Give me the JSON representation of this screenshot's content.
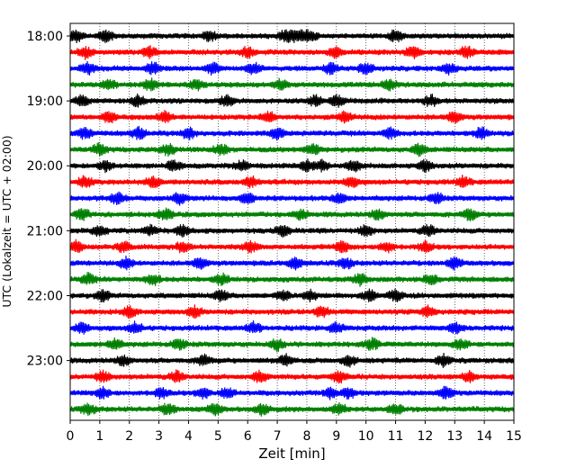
{
  "chart_data": {
    "type": "line",
    "title": "",
    "xlabel": "Zeit  [min]",
    "ylabel": "UTC (Lokalzeit = UTC + 02:00)",
    "xlim": [
      0,
      15
    ],
    "xticks": [
      0,
      1,
      2,
      3,
      4,
      5,
      6,
      7,
      8,
      9,
      10,
      11,
      12,
      13,
      14,
      15
    ],
    "grid": "vertical dotted",
    "row_interval_minutes": 15,
    "y_tick_labels": [
      "18:00",
      "19:00",
      "20:00",
      "21:00",
      "22:00",
      "23:00"
    ],
    "color_cycle": [
      "#000000",
      "#ff0000",
      "#0000ff",
      "#008000"
    ],
    "rows": [
      {
        "start": "18:00",
        "color": "black",
        "events_min": [
          0.2,
          1.2,
          4.7,
          7.3,
          7.7,
          8.1,
          11.0
        ]
      },
      {
        "start": "18:15",
        "color": "red",
        "events_min": [
          0.5,
          2.7,
          6.0,
          9.0,
          11.6,
          13.4
        ]
      },
      {
        "start": "18:30",
        "color": "blue",
        "events_min": [
          0.6,
          2.8,
          4.8,
          6.2,
          8.8,
          10.0,
          12.8
        ]
      },
      {
        "start": "18:45",
        "color": "green",
        "events_min": [
          1.3,
          2.7,
          4.3,
          7.1,
          10.8
        ]
      },
      {
        "start": "19:00",
        "color": "black",
        "events_min": [
          0.4,
          2.3,
          5.3,
          8.3,
          9.0,
          12.2
        ]
      },
      {
        "start": "19:15",
        "color": "red",
        "events_min": [
          1.3,
          3.2,
          6.7,
          9.3,
          13.0
        ]
      },
      {
        "start": "19:30",
        "color": "blue",
        "events_min": [
          0.5,
          2.3,
          4.0,
          7.0,
          10.8,
          13.9
        ]
      },
      {
        "start": "19:45",
        "color": "green",
        "events_min": [
          1.0,
          3.3,
          5.1,
          8.2,
          11.8
        ]
      },
      {
        "start": "20:00",
        "color": "black",
        "events_min": [
          1.2,
          3.5,
          5.8,
          8.0,
          8.5,
          9.6,
          12.0
        ]
      },
      {
        "start": "20:15",
        "color": "red",
        "events_min": [
          0.5,
          2.8,
          6.1,
          9.5,
          13.3
        ]
      },
      {
        "start": "20:30",
        "color": "blue",
        "events_min": [
          1.6,
          3.7,
          6.0,
          9.1,
          12.4
        ]
      },
      {
        "start": "20:45",
        "color": "green",
        "events_min": [
          0.4,
          3.2,
          7.8,
          10.4,
          13.5
        ]
      },
      {
        "start": "21:00",
        "color": "black",
        "events_min": [
          1.0,
          2.7,
          3.8,
          7.2,
          10.0,
          12.1
        ]
      },
      {
        "start": "21:15",
        "color": "red",
        "events_min": [
          0.2,
          1.8,
          3.8,
          6.1,
          9.2,
          10.7,
          12.0
        ]
      },
      {
        "start": "21:30",
        "color": "blue",
        "events_min": [
          1.9,
          4.4,
          7.6,
          9.3,
          13.0
        ]
      },
      {
        "start": "21:45",
        "color": "green",
        "events_min": [
          0.6,
          2.8,
          5.1,
          9.8,
          12.2
        ]
      },
      {
        "start": "22:00",
        "color": "black",
        "events_min": [
          1.1,
          5.1,
          7.2,
          8.1,
          10.1,
          11.0
        ]
      },
      {
        "start": "22:15",
        "color": "red",
        "events_min": [
          2.0,
          4.2,
          8.5,
          12.1
        ]
      },
      {
        "start": "22:30",
        "color": "blue",
        "events_min": [
          0.4,
          2.2,
          6.2,
          9.0,
          13.0
        ]
      },
      {
        "start": "22:45",
        "color": "green",
        "events_min": [
          1.5,
          3.7,
          7.0,
          10.2,
          13.2
        ]
      },
      {
        "start": "23:00",
        "color": "black",
        "events_min": [
          1.8,
          4.5,
          7.3,
          9.4,
          12.6
        ]
      },
      {
        "start": "23:15",
        "color": "red",
        "events_min": [
          1.1,
          3.6,
          6.4,
          9.1,
          13.5
        ]
      },
      {
        "start": "23:30",
        "color": "blue",
        "events_min": [
          1.1,
          3.1,
          4.5,
          5.3,
          8.8,
          9.4,
          12.7
        ]
      },
      {
        "start": "23:45",
        "color": "green",
        "events_min": [
          0.6,
          3.3,
          4.9,
          6.5,
          9.1,
          11.0
        ]
      }
    ]
  }
}
